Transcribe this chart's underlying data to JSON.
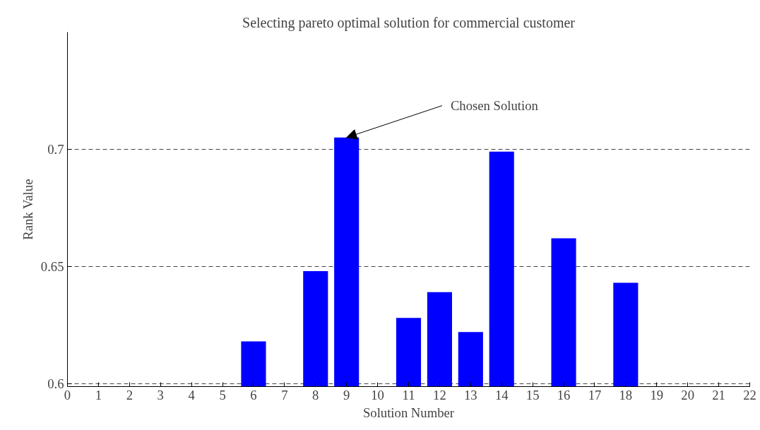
{
  "chart_data": {
    "type": "bar",
    "title": "Selecting pareto optimal solution for commercial customer",
    "xlabel": "Solution Number",
    "ylabel": "Rank Value",
    "x": [
      6,
      8,
      9,
      11,
      12,
      13,
      14,
      16,
      18
    ],
    "values": [
      0.618,
      0.648,
      0.705,
      0.628,
      0.639,
      0.622,
      0.699,
      0.662,
      0.643
    ],
    "color": "#0000ff",
    "xlim": [
      0,
      22
    ],
    "xticks": [
      0,
      1,
      2,
      3,
      4,
      5,
      6,
      7,
      8,
      9,
      10,
      11,
      12,
      13,
      14,
      15,
      16,
      17,
      18,
      19,
      20,
      21,
      22
    ],
    "ylim": [
      0.5987,
      0.75
    ],
    "yticks": [
      {
        "value": 0.6,
        "label": "0.6"
      },
      {
        "value": 0.65,
        "label": "0.65"
      },
      {
        "value": 0.7,
        "label": "0.7"
      }
    ],
    "grid": "y",
    "annotations": [
      {
        "text": "Chosen Solution",
        "x": 9,
        "y": 0.705
      }
    ]
  }
}
